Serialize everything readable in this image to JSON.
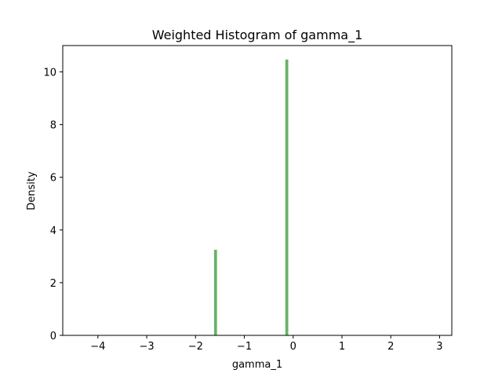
{
  "chart_data": {
    "type": "bar",
    "title": "Weighted Histogram of gamma_1",
    "xlabel": "gamma_1",
    "ylabel": "Density",
    "xlim": [
      -4.72,
      3.25
    ],
    "ylim": [
      0,
      11
    ],
    "xticks": [
      -4,
      -3,
      -2,
      -1,
      0,
      1,
      2,
      3
    ],
    "yticks": [
      0,
      2,
      4,
      6,
      8,
      10
    ],
    "grid": false,
    "legend": "none",
    "bar_color": "#66b366",
    "bin_width": 0.06,
    "bars": [
      {
        "x": -1.59,
        "value": 3.25
      },
      {
        "x": -0.13,
        "value": 10.47
      }
    ]
  }
}
